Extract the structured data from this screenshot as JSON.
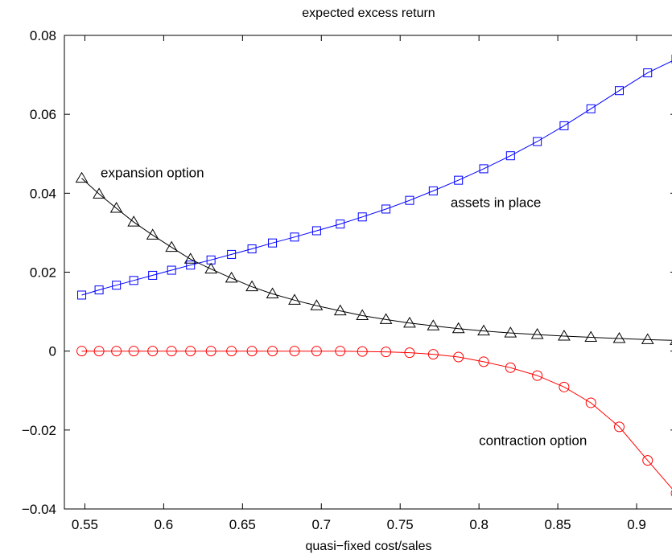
{
  "chart_data": {
    "type": "line",
    "title": "expected excess return",
    "xlabel": "quasi−fixed cost/sales",
    "ylabel": "",
    "xlim": [
      0.537,
      0.925
    ],
    "ylim": [
      -0.04,
      0.08
    ],
    "xticks": [
      0.55,
      0.6,
      0.65,
      0.7,
      0.75,
      0.8,
      0.85,
      0.9
    ],
    "xtick_labels": [
      "0.55",
      "0.6",
      "0.65",
      "0.7",
      "0.75",
      "0.8",
      "0.85",
      "0.9"
    ],
    "yticks": [
      -0.04,
      -0.02,
      0,
      0.02,
      0.04,
      0.06,
      0.08
    ],
    "ytick_labels": [
      "−0.04",
      "−0.02",
      "0",
      "0.02",
      "0.04",
      "0.06",
      "0.08"
    ],
    "grid": false,
    "x": [
      0.548,
      0.559,
      0.57,
      0.581,
      0.593,
      0.605,
      0.617,
      0.63,
      0.643,
      0.656,
      0.669,
      0.683,
      0.697,
      0.712,
      0.726,
      0.741,
      0.756,
      0.771,
      0.787,
      0.803,
      0.82,
      0.837,
      0.854,
      0.871,
      0.889,
      0.907,
      0.925
    ],
    "series": [
      {
        "name": "assets in place",
        "color": "#0000ff",
        "marker": "square",
        "values": [
          0.0142,
          0.0155,
          0.0167,
          0.0179,
          0.0192,
          0.0205,
          0.0218,
          0.0231,
          0.0245,
          0.0259,
          0.0274,
          0.0289,
          0.0305,
          0.0322,
          0.034,
          0.036,
          0.0382,
          0.0406,
          0.0433,
          0.0462,
          0.0495,
          0.0531,
          0.0571,
          0.0614,
          0.066,
          0.0705,
          0.074
        ]
      },
      {
        "name": "expansion option",
        "color": "#000000",
        "marker": "triangle",
        "values": [
          0.0438,
          0.0398,
          0.0362,
          0.0327,
          0.0294,
          0.0263,
          0.0233,
          0.0208,
          0.0185,
          0.0163,
          0.0145,
          0.0129,
          0.0115,
          0.0102,
          0.009,
          0.008,
          0.0071,
          0.0064,
          0.0057,
          0.0051,
          0.0046,
          0.0042,
          0.0038,
          0.0035,
          0.0032,
          0.0029,
          0.0027
        ]
      },
      {
        "name": "contraction option",
        "color": "#ff0000",
        "marker": "circle",
        "values": [
          0.0,
          0.0,
          0.0,
          0.0,
          0.0,
          0.0,
          0.0,
          0.0,
          0.0,
          0.0,
          0.0,
          0.0,
          0.0,
          0.0,
          -0.0001,
          -0.0002,
          -0.0004,
          -0.0008,
          -0.0015,
          -0.0027,
          -0.0042,
          -0.0062,
          -0.0091,
          -0.0131,
          -0.0192,
          -0.0277,
          -0.036
        ]
      }
    ],
    "annotations": [
      {
        "text": "expansion option",
        "x": 0.56,
        "y": 0.044
      },
      {
        "text": "assets in place",
        "x": 0.782,
        "y": 0.0365
      },
      {
        "text": "contraction option",
        "x": 0.8,
        "y": -0.0238
      }
    ]
  }
}
